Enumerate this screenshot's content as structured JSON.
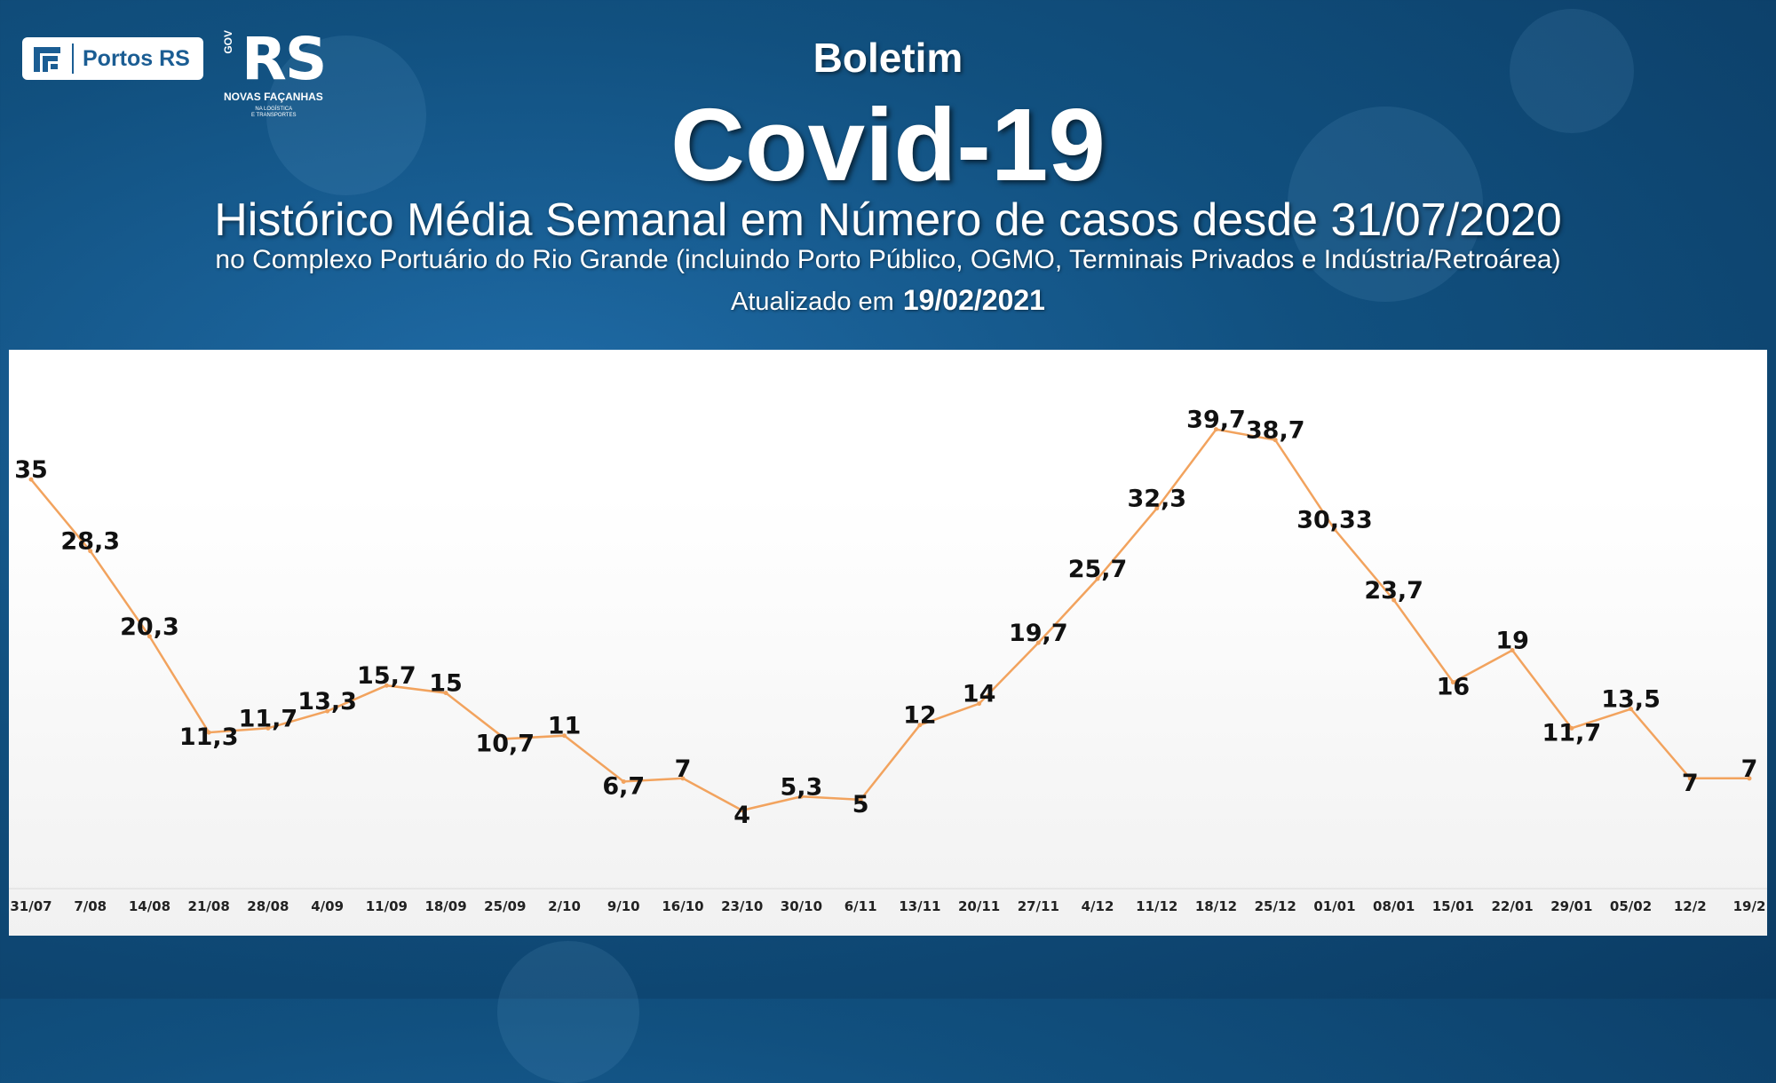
{
  "header": {
    "logo_portos": "Portos RS",
    "logo_rs": {
      "vertical_text": "GOV",
      "brand": "RS",
      "tagline": "NOVAS FAÇANHAS",
      "tagline_small_1": "NA LOGÍSTICA",
      "tagline_small_2": "E TRANSPORTES"
    },
    "kicker": "Boletim",
    "title": "Covid-19",
    "subtitle": "Histórico Média Semanal em Número de casos desde 31/07/2020",
    "description": "no Complexo Portuário do Rio Grande (incluindo Porto Público, OGMO, Terminais Privados e Indústria/Retroárea)",
    "updated_label": "Atualizado em",
    "updated_date": "19/02/2021"
  },
  "colors": {
    "background": "#11507f",
    "line": "#f2a35e",
    "labels": "#111111"
  },
  "chart_data": {
    "type": "line",
    "title": "",
    "xlabel": "",
    "ylabel": "",
    "ylim": [
      0,
      42
    ],
    "grid": false,
    "categories": [
      "31/07",
      "7/08",
      "14/08",
      "21/08",
      "28/08",
      "4/09",
      "11/09",
      "18/09",
      "25/09",
      "2/10",
      "9/10",
      "16/10",
      "23/10",
      "30/10",
      "6/11",
      "13/11",
      "20/11",
      "27/11",
      "4/12",
      "11/12",
      "18/12",
      "25/12",
      "01/01",
      "08/01",
      "15/01",
      "22/01",
      "29/01",
      "05/02",
      "12/2",
      "19/2"
    ],
    "series": [
      {
        "values": [
          35,
          28.3,
          20.3,
          11.3,
          11.7,
          13.3,
          15.7,
          15,
          10.7,
          11,
          6.7,
          7,
          4,
          5.3,
          5,
          12,
          14,
          19.7,
          25.7,
          32.3,
          39.7,
          38.7,
          30.33,
          23.7,
          16,
          19,
          11.7,
          13.5,
          7,
          7
        ],
        "labels": [
          "35",
          "28,3",
          "20,3",
          "11,3",
          "11,7",
          "13,3",
          "15,7",
          "15",
          "10,7",
          "11",
          "6,7",
          "7",
          "4",
          "5,3",
          "5",
          "12",
          "14",
          "19,7",
          "25,7",
          "32,3",
          "39,7",
          "38,7",
          "30,33",
          "23,7",
          "16",
          "19",
          "11,7",
          "13,5",
          "7",
          "7"
        ]
      }
    ]
  }
}
